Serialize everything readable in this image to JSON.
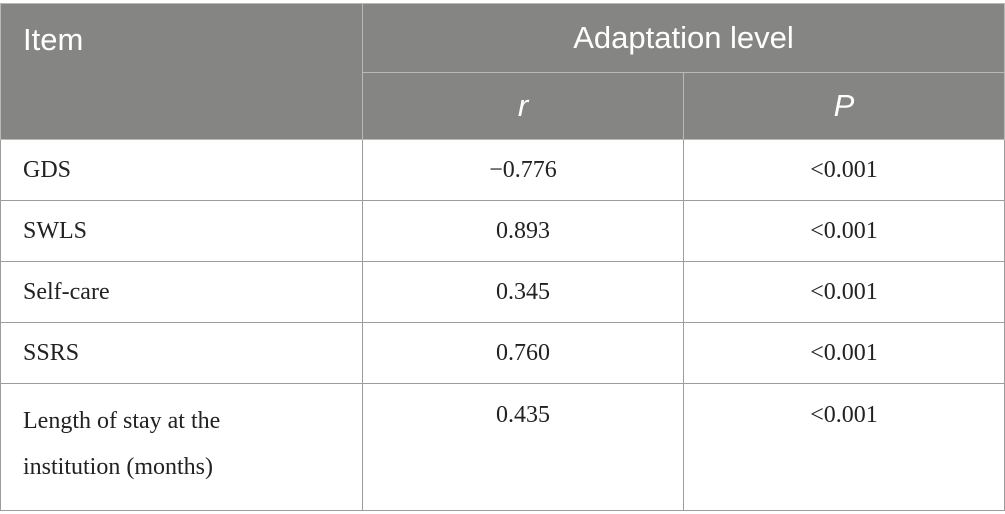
{
  "table": {
    "header": {
      "item": "Item",
      "group": "Adaptation level",
      "col_r": "r",
      "col_p": "P"
    },
    "rows": [
      {
        "item": "GDS",
        "r": "−0.776",
        "p": "<0.001"
      },
      {
        "item": "SWLS",
        "r": "0.893",
        "p": "<0.001"
      },
      {
        "item": "Self-care",
        "r": "0.345",
        "p": "<0.001"
      },
      {
        "item": "SSRS",
        "r": "0.760",
        "p": "<0.001"
      },
      {
        "item_line1": "Length of stay at the",
        "item_line2": "institution (months)",
        "r": "0.435",
        "p": "<0.001"
      }
    ]
  }
}
